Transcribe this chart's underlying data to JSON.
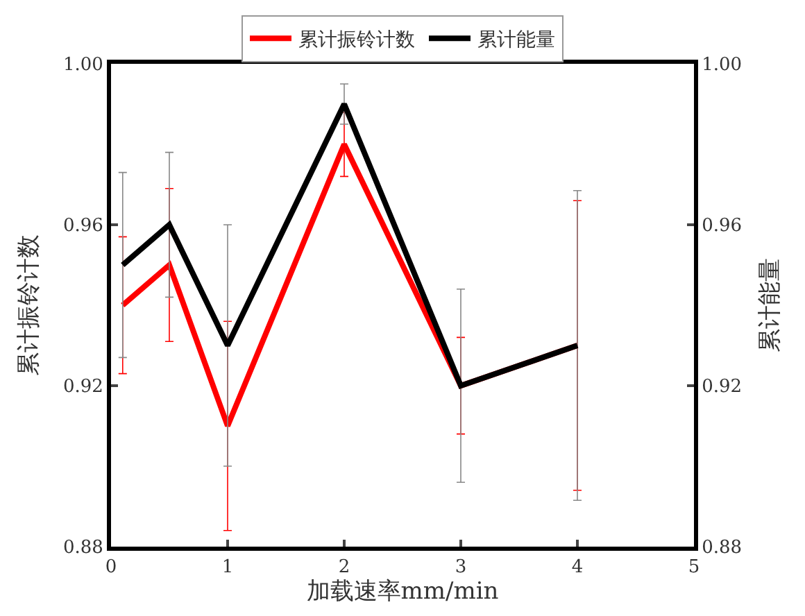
{
  "chart_data": {
    "type": "line",
    "xlabel": "加载速率mm/min",
    "ylabel": "累计振铃计数",
    "y2label": "累计能量",
    "x": [
      0.1,
      0.5,
      1,
      2,
      3,
      4
    ],
    "series": [
      {
        "name": "累计振铃计数",
        "color": "#ff0000",
        "values": [
          0.94,
          0.95,
          0.91,
          0.98,
          0.92,
          0.93
        ],
        "errors": [
          0.017,
          0.019,
          0.026,
          0.008,
          0.012,
          0.036
        ]
      },
      {
        "name": "累计能量",
        "color": "#000000",
        "axis": "y2",
        "values": [
          0.95,
          0.96,
          0.93,
          0.99,
          0.92,
          0.93
        ],
        "errors": [
          0.023,
          0.018,
          0.03,
          0.005,
          0.024,
          0.0385
        ]
      }
    ],
    "xlim": [
      0,
      5
    ],
    "xticks": [
      0,
      1,
      2,
      3,
      4,
      5
    ],
    "ylim": [
      0.88,
      1.0
    ],
    "yticks": [
      {
        "value": 0.88,
        "label": "0.88"
      },
      {
        "value": 0.92,
        "label": "0.92"
      },
      {
        "value": 0.96,
        "label": "0.96"
      },
      {
        "value": 1.0,
        "label": "1.00"
      }
    ],
    "y2lim": [
      0.88,
      1.0
    ],
    "y2ticks": [
      {
        "value": 0.88,
        "label": "0.88"
      },
      {
        "value": 0.92,
        "label": "0.92"
      },
      {
        "value": 0.96,
        "label": "0.96"
      },
      {
        "value": 1.0,
        "label": "1.00"
      }
    ],
    "legend": "top",
    "grid": false,
    "marker": "none",
    "line_style": "solid"
  }
}
